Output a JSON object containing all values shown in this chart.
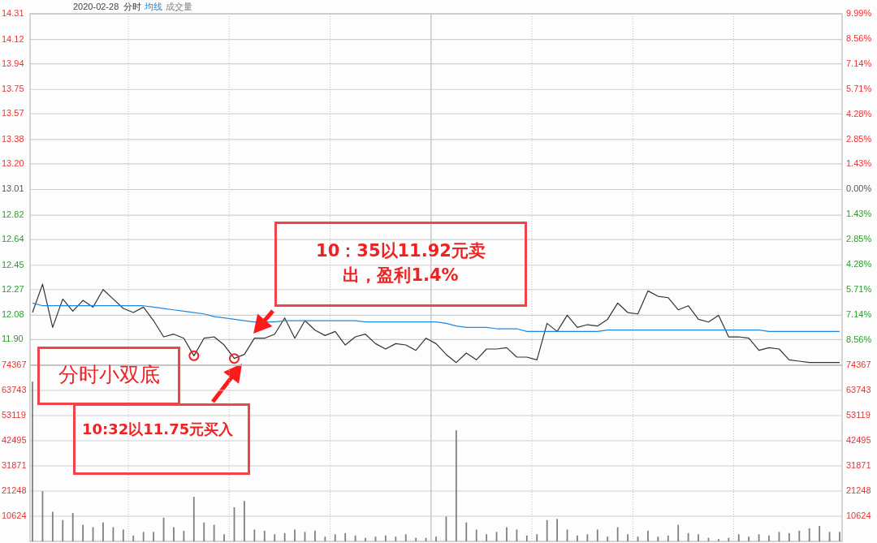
{
  "chart_data": [
    {
      "type": "line",
      "title": "2020-02-28",
      "legend": "top left",
      "grid": true,
      "categories": [
        null,
        null,
        null,
        null,
        null,
        null,
        null,
        null,
        null,
        null,
        null,
        null,
        null,
        null,
        null,
        null,
        null,
        null,
        null,
        null,
        null,
        null,
        null,
        null,
        null,
        null,
        null,
        null,
        null,
        null,
        null,
        null,
        null,
        null,
        null,
        null,
        null,
        null,
        null,
        null,
        null,
        null,
        null,
        null,
        null,
        null,
        null,
        null,
        null,
        null,
        null,
        null,
        null,
        null,
        null,
        null,
        null,
        null,
        null,
        null,
        null,
        null,
        null,
        null,
        null,
        null,
        null,
        null,
        null,
        null,
        null,
        null,
        null,
        null,
        null,
        null,
        null,
        null,
        null,
        null,
        null
      ],
      "series": [
        {
          "name": "分时",
          "color": "#333333",
          "values": [
            12.1,
            12.31,
            11.99,
            12.2,
            12.11,
            12.19,
            12.14,
            12.27,
            12.2,
            12.13,
            12.1,
            12.14,
            12.04,
            11.92,
            11.94,
            11.91,
            11.78,
            11.91,
            11.92,
            11.86,
            11.76,
            11.79,
            11.91,
            11.91,
            11.94,
            12.06,
            11.91,
            12.04,
            11.97,
            11.93,
            11.96,
            11.86,
            11.92,
            11.94,
            11.87,
            11.83,
            11.87,
            11.86,
            11.82,
            11.91,
            11.87,
            11.79,
            11.73,
            11.8,
            11.75,
            11.83,
            11.83,
            11.84,
            11.77,
            11.77,
            11.75,
            12.02,
            11.96,
            12.08,
            11.99,
            12.01,
            12.0,
            12.05,
            12.17,
            12.1,
            12.09,
            12.26,
            12.22,
            12.21,
            12.12,
            12.15,
            12.05,
            12.03,
            12.08,
            11.92,
            11.92,
            11.91,
            11.82,
            11.84,
            11.83,
            11.75,
            11.74,
            11.73,
            11.73,
            11.73,
            11.73
          ]
        },
        {
          "name": "均线",
          "color": "#1e88e5",
          "values": [
            12.17,
            12.15,
            12.15,
            12.15,
            12.15,
            12.15,
            12.15,
            12.15,
            12.15,
            12.15,
            12.15,
            12.15,
            12.14,
            12.13,
            12.12,
            12.11,
            12.1,
            12.09,
            12.07,
            12.06,
            12.05,
            12.04,
            12.03,
            12.03,
            12.03,
            12.04,
            12.04,
            12.04,
            12.04,
            12.04,
            12.04,
            12.04,
            12.04,
            12.03,
            12.03,
            12.03,
            12.03,
            12.03,
            12.03,
            12.03,
            12.03,
            12.02,
            12.0,
            11.99,
            11.99,
            11.99,
            11.98,
            11.98,
            11.98,
            11.96,
            11.96,
            11.96,
            11.96,
            11.96,
            11.96,
            11.96,
            11.96,
            11.97,
            11.97,
            11.97,
            11.97,
            11.97,
            11.97,
            11.97,
            11.97,
            11.97,
            11.97,
            11.97,
            11.97,
            11.97,
            11.97,
            11.97,
            11.97,
            11.96,
            11.96,
            11.96,
            11.96,
            11.96,
            11.96,
            11.96,
            11.96
          ]
        }
      ],
      "ylim": [
        11.71,
        14.31
      ],
      "yticks": [
        {
          "value": 11.9,
          "label": "11.90"
        },
        12.08,
        12.27,
        12.45,
        12.64,
        12.82,
        13.01,
        {
          "value": 13.2,
          "label": "13.20"
        },
        13.38,
        13.57,
        13.75,
        13.94,
        14.12,
        14.31
      ],
      "y2lim": [
        -9.99,
        9.99
      ],
      "y2ticks": [
        {
          "value": -8.56,
          "label": "8.56%"
        },
        {
          "value": -7.14,
          "label": "7.14%"
        },
        {
          "value": -5.71,
          "label": "5.71%"
        },
        {
          "value": -4.28,
          "label": "4.28%"
        },
        {
          "value": -2.85,
          "label": "2.85%"
        },
        {
          "value": -1.43,
          "label": "1.43%"
        },
        {
          "value": 0,
          "label": "0.00%"
        },
        {
          "value": 1.43,
          "label": "1.43%"
        },
        {
          "value": 2.85,
          "label": "2.85%"
        },
        {
          "value": 4.28,
          "label": "4.28%"
        },
        {
          "value": 5.71,
          "label": "5.71%"
        },
        {
          "value": 7.14,
          "label": "7.14%"
        },
        {
          "value": 8.56,
          "label": "8.56%"
        },
        {
          "value": 9.99,
          "label": "9.99%"
        }
      ],
      "annotations": [
        "10：35以11.92元卖出，盈利1.4%",
        "分时小双底",
        "10:32以11.75元买入"
      ]
    },
    {
      "type": "bar",
      "legend": "top left",
      "grid": true,
      "categories": [
        null,
        null,
        null,
        null,
        null,
        null,
        null,
        null,
        null,
        null,
        null,
        null,
        null,
        null,
        null,
        null,
        null,
        null,
        null,
        null,
        null,
        null,
        null,
        null,
        null,
        null,
        null,
        null,
        null,
        null,
        null,
        null,
        null,
        null,
        null,
        null,
        null,
        null,
        null,
        null,
        null,
        null,
        null,
        null,
        null,
        null,
        null,
        null,
        null,
        null,
        null,
        null,
        null,
        null,
        null,
        null,
        null,
        null,
        null,
        null,
        null,
        null,
        null,
        null,
        null,
        null,
        null,
        null,
        null,
        null,
        null,
        null,
        null,
        null,
        null,
        null,
        null,
        null,
        null,
        null,
        null
      ],
      "series": [
        {
          "name": "成交量",
          "color": "#808080",
          "values": [
            67500,
            21200,
            12500,
            9000,
            12000,
            7000,
            6000,
            8000,
            6000,
            5000,
            2500,
            4000,
            4000,
            10000,
            6000,
            4500,
            18800,
            8000,
            7000,
            3000,
            14400,
            17100,
            5000,
            4500,
            3000,
            3500,
            5000,
            4000,
            4500,
            2000,
            3000,
            3500,
            2500,
            1500,
            2000,
            2500,
            2000,
            3000,
            1500,
            1500,
            2000,
            10500,
            46900,
            8000,
            5000,
            3000,
            4000,
            6000,
            5000,
            2500,
            3000,
            9000,
            9500,
            5000,
            2500,
            3000,
            5000,
            2000,
            6000,
            3000,
            2000,
            4500,
            2000,
            2500,
            7000,
            3500,
            3000,
            1500,
            1000,
            1500,
            3000,
            2000,
            3000,
            2500,
            4000,
            3500,
            4500,
            5500,
            6500,
            4000,
            4000
          ]
        }
      ],
      "ylim": [
        0,
        74367
      ],
      "y2lim": [
        0,
        74367
      ],
      "yticks": [
        10624,
        21248,
        31871,
        42495,
        53119,
        63743,
        74367
      ],
      "y2ticks": [
        10624,
        21248,
        31871,
        42495,
        53119,
        63743,
        74367
      ]
    }
  ]
}
